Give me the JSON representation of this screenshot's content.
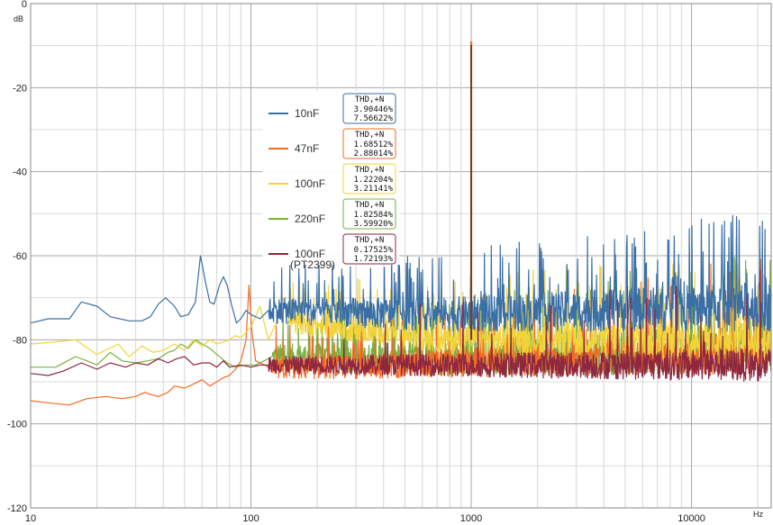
{
  "chart_data": {
    "type": "line",
    "x_scale": "log",
    "xlim": [
      10,
      23000
    ],
    "ylim": [
      -120,
      0
    ],
    "xlabel": "Hz",
    "ylabel": "dB",
    "x_ticks": [
      "10",
      "100",
      "1000",
      "10000"
    ],
    "y_ticks": [
      "0",
      "-20",
      "-40",
      "-60",
      "-80",
      "-100",
      "-120"
    ],
    "grid": true,
    "legend_position": "center-left",
    "box_header": "THD,+N",
    "series": [
      {
        "name": "10nF",
        "name2": "",
        "color": "#3a6fa5",
        "thd": "3.90446%",
        "thdn": "7.56622%",
        "base": -75,
        "hf": -72,
        "jitter": 3,
        "spikes": 9,
        "points": [
          [
            10,
            -76
          ],
          [
            12,
            -75
          ],
          [
            15,
            -75
          ],
          [
            17,
            -71
          ],
          [
            20,
            -72
          ],
          [
            23,
            -74.5
          ],
          [
            28,
            -75.5
          ],
          [
            32,
            -75.5
          ],
          [
            35,
            -74.5
          ],
          [
            38,
            -71.5
          ],
          [
            41,
            -70
          ],
          [
            45,
            -72
          ],
          [
            48,
            -74.5
          ],
          [
            52,
            -74
          ],
          [
            56,
            -71
          ],
          [
            59,
            -60
          ],
          [
            62,
            -66
          ],
          [
            65,
            -71
          ],
          [
            68,
            -71.5
          ],
          [
            72,
            -67
          ],
          [
            75,
            -65
          ],
          [
            78,
            -67
          ],
          [
            82,
            -72
          ],
          [
            86,
            -76
          ],
          [
            90,
            -75
          ],
          [
            95,
            -73
          ],
          [
            100,
            -74
          ],
          [
            110,
            -75
          ],
          [
            120,
            -73
          ]
        ]
      },
      {
        "name": "47nF",
        "name2": "",
        "color": "#f46a24",
        "thd": "1.68512%",
        "thdn": "2.88014%",
        "base": -87,
        "hf": -83,
        "jitter": 2.5,
        "spikes": 6,
        "points": [
          [
            10,
            -94.5
          ],
          [
            12,
            -95
          ],
          [
            15,
            -95.5
          ],
          [
            18,
            -94
          ],
          [
            22,
            -93.5
          ],
          [
            26,
            -94
          ],
          [
            30,
            -93.5
          ],
          [
            33,
            -92.5
          ],
          [
            35,
            -93
          ],
          [
            38,
            -93.5
          ],
          [
            42,
            -92.5
          ],
          [
            45,
            -91
          ],
          [
            50,
            -91.5
          ],
          [
            55,
            -90.5
          ],
          [
            60,
            -89.5
          ],
          [
            65,
            -91
          ],
          [
            70,
            -90
          ],
          [
            75,
            -89
          ],
          [
            80,
            -88.5
          ],
          [
            85,
            -87
          ],
          [
            90,
            -85
          ],
          [
            95,
            -80
          ],
          [
            98,
            -67
          ],
          [
            101,
            -78
          ],
          [
            105,
            -85
          ],
          [
            115,
            -86
          ],
          [
            125,
            -87
          ]
        ]
      },
      {
        "name": "100nF",
        "name2": "",
        "color": "#f1d33a",
        "thd": "1.22204%",
        "thdn": "3.21141%",
        "base": -80,
        "hf": -80,
        "jitter": 2.5,
        "spikes": 6,
        "points": [
          [
            10,
            -81
          ],
          [
            13,
            -80.5
          ],
          [
            16,
            -80
          ],
          [
            20,
            -83.5
          ],
          [
            25,
            -81
          ],
          [
            28,
            -84
          ],
          [
            32,
            -81.5
          ],
          [
            36,
            -83
          ],
          [
            40,
            -82.5
          ],
          [
            45,
            -81
          ],
          [
            50,
            -82.5
          ],
          [
            55,
            -80
          ],
          [
            60,
            -81.5
          ],
          [
            65,
            -80
          ],
          [
            70,
            -81
          ],
          [
            75,
            -80.5
          ],
          [
            80,
            -80
          ],
          [
            85,
            -79
          ],
          [
            90,
            -79.5
          ],
          [
            100,
            -77
          ],
          [
            110,
            -72
          ],
          [
            120,
            -80
          ],
          [
            130,
            -76
          ],
          [
            140,
            -70
          ],
          [
            150,
            -76
          ]
        ]
      },
      {
        "name": "220nF",
        "name2": "",
        "color": "#79b041",
        "thd": "1.82584%",
        "thdn": "3.59920%",
        "base": -86,
        "hf": -82,
        "jitter": 3,
        "spikes": 8,
        "points": [
          [
            10,
            -86.5
          ],
          [
            13,
            -86.5
          ],
          [
            16,
            -84
          ],
          [
            18,
            -85
          ],
          [
            20,
            -86
          ],
          [
            23,
            -83
          ],
          [
            26,
            -85
          ],
          [
            30,
            -85.5
          ],
          [
            34,
            -85
          ],
          [
            38,
            -84.5
          ],
          [
            42,
            -83
          ],
          [
            45,
            -82.5
          ],
          [
            48,
            -81
          ],
          [
            52,
            -82
          ],
          [
            56,
            -80
          ],
          [
            60,
            -81
          ],
          [
            65,
            -82
          ],
          [
            70,
            -83.5
          ],
          [
            78,
            -85.5
          ],
          [
            85,
            -86.5
          ],
          [
            95,
            -86
          ],
          [
            105,
            -86
          ],
          [
            115,
            -85
          ],
          [
            125,
            -84
          ]
        ]
      },
      {
        "name": "100nF",
        "name2": "(PT2399)",
        "color": "#8e2740",
        "thd": "0.17525%",
        "thdn": "1.72193%",
        "base": -86,
        "hf": -86,
        "jitter": 2,
        "spikes": 3,
        "points": [
          [
            10,
            -88
          ],
          [
            12,
            -88.5
          ],
          [
            14,
            -87.5
          ],
          [
            17,
            -85.5
          ],
          [
            20,
            -87
          ],
          [
            23,
            -85.5
          ],
          [
            27,
            -86.5
          ],
          [
            30,
            -85.5
          ],
          [
            34,
            -86
          ],
          [
            38,
            -84.5
          ],
          [
            42,
            -85.5
          ],
          [
            46,
            -84.5
          ],
          [
            50,
            -84
          ],
          [
            55,
            -86
          ],
          [
            60,
            -85.5
          ],
          [
            65,
            -85.5
          ],
          [
            70,
            -86.5
          ],
          [
            75,
            -85
          ],
          [
            80,
            -86.5
          ],
          [
            90,
            -86
          ],
          [
            100,
            -86.5
          ],
          [
            110,
            -86
          ],
          [
            120,
            -86
          ]
        ]
      }
    ],
    "fundamental": {
      "x": 1000,
      "y": -9,
      "colors": [
        "#f46a24",
        "#2d2d2d"
      ]
    }
  }
}
